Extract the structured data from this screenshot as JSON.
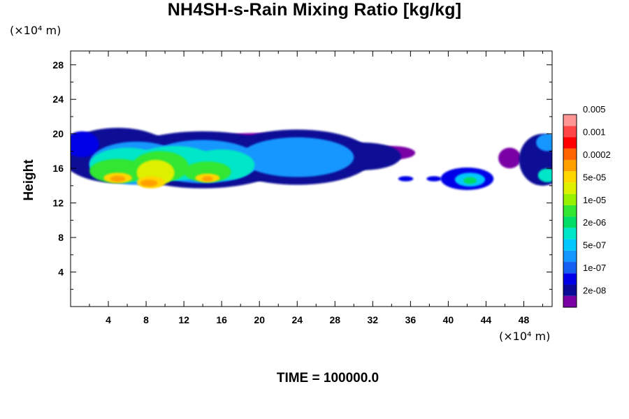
{
  "chart_data": {
    "type": "heatmap",
    "title": "NH4SH-s-Rain Mixing Ratio [kg/kg]",
    "ylabel": "Height",
    "x_unit": "(×10⁴ m)",
    "y_unit": "(×10⁴ m)",
    "footer": "TIME = 100000.0",
    "xlim": [
      0,
      51
    ],
    "ylim": [
      0,
      29.6
    ],
    "x_ticks": [
      4,
      8,
      12,
      16,
      20,
      24,
      28,
      32,
      36,
      40,
      44,
      48
    ],
    "y_ticks": [
      4,
      8,
      12,
      16,
      20,
      24,
      28
    ],
    "x_tick_labels": [
      "4",
      "8",
      "12",
      "16",
      "20",
      "24",
      "28",
      "32",
      "36",
      "40",
      "44",
      "48"
    ],
    "y_tick_labels": [
      "4",
      "8",
      "12",
      "16",
      "20",
      "24",
      "28"
    ],
    "colorbar": {
      "colors": [
        "#7a00a6",
        "#0a0a96",
        "#0000e6",
        "#1460f0",
        "#1496ff",
        "#00c8ff",
        "#00e6c8",
        "#00dc64",
        "#32e632",
        "#96f000",
        "#dcf000",
        "#ffd700",
        "#ffa000",
        "#ff6400",
        "#ff0000",
        "#ff4646",
        "#ff9696"
      ],
      "labels": [
        "2e-08",
        "1e-07",
        "5e-07",
        "2e-06",
        "1e-05",
        "5e-05",
        "0.0002",
        "0.001",
        "0.005"
      ]
    },
    "features": [
      {
        "x": 1.2,
        "y": 18.8,
        "rx": 1.8,
        "ry": 1.5,
        "level": 2
      },
      {
        "x": 5,
        "y": 17.5,
        "rx": 6,
        "ry": 3.2,
        "level": 1
      },
      {
        "x": 14,
        "y": 17,
        "rx": 9,
        "ry": 3.3,
        "level": 1
      },
      {
        "x": 24,
        "y": 17.3,
        "rx": 8,
        "ry": 3.2,
        "level": 1
      },
      {
        "x": 31,
        "y": 17.4,
        "rx": 4,
        "ry": 1.6,
        "level": 1
      },
      {
        "x": 34,
        "y": 17.8,
        "rx": 2.5,
        "ry": 0.8,
        "level": 0
      },
      {
        "x": 20,
        "y": 19.2,
        "rx": 6,
        "ry": 0.9,
        "level": 0
      },
      {
        "x": 7,
        "y": 16.6,
        "rx": 5,
        "ry": 2.5,
        "level": 4
      },
      {
        "x": 14,
        "y": 16.8,
        "rx": 6,
        "ry": 2.5,
        "level": 4
      },
      {
        "x": 24,
        "y": 17.3,
        "rx": 6,
        "ry": 2.3,
        "level": 4
      },
      {
        "x": 6,
        "y": 16.4,
        "rx": 4,
        "ry": 2,
        "level": 6
      },
      {
        "x": 11,
        "y": 16.6,
        "rx": 4.5,
        "ry": 2,
        "level": 6
      },
      {
        "x": 16,
        "y": 16.4,
        "rx": 3.5,
        "ry": 1.8,
        "level": 6
      },
      {
        "x": 5,
        "y": 15.7,
        "rx": 3,
        "ry": 1.4,
        "level": 8
      },
      {
        "x": 9.5,
        "y": 16.2,
        "rx": 3,
        "ry": 1.8,
        "level": 8
      },
      {
        "x": 14.5,
        "y": 15.6,
        "rx": 2.5,
        "ry": 1.2,
        "level": 8
      },
      {
        "x": 9,
        "y": 15.5,
        "rx": 2,
        "ry": 1.5,
        "level": 10
      },
      {
        "x": 5,
        "y": 14.9,
        "rx": 1.5,
        "ry": 0.6,
        "level": 11
      },
      {
        "x": 8.5,
        "y": 14.4,
        "rx": 1.5,
        "ry": 0.7,
        "level": 11
      },
      {
        "x": 14.5,
        "y": 14.9,
        "rx": 1.3,
        "ry": 0.5,
        "level": 11
      },
      {
        "x": 5,
        "y": 14.8,
        "rx": 0.8,
        "ry": 0.35,
        "level": 12
      },
      {
        "x": 8.3,
        "y": 14.3,
        "rx": 0.9,
        "ry": 0.4,
        "level": 12
      },
      {
        "x": 14.5,
        "y": 14.8,
        "rx": 0.6,
        "ry": 0.3,
        "level": 12
      },
      {
        "x": 35.5,
        "y": 14.8,
        "rx": 0.8,
        "ry": 0.3,
        "level": 2
      },
      {
        "x": 38.5,
        "y": 14.8,
        "rx": 0.8,
        "ry": 0.3,
        "level": 2
      },
      {
        "x": 42,
        "y": 14.8,
        "rx": 2.8,
        "ry": 1.3,
        "level": 2
      },
      {
        "x": 42.3,
        "y": 14.7,
        "rx": 1.6,
        "ry": 0.8,
        "level": 5
      },
      {
        "x": 42.3,
        "y": 14.6,
        "rx": 0.7,
        "ry": 0.4,
        "level": 7
      },
      {
        "x": 46.5,
        "y": 17.2,
        "rx": 1.2,
        "ry": 1.2,
        "level": 0
      },
      {
        "x": 50,
        "y": 17,
        "rx": 2.5,
        "ry": 3,
        "level": 1
      },
      {
        "x": 50.5,
        "y": 19,
        "rx": 1.2,
        "ry": 1,
        "level": 4
      },
      {
        "x": 50.5,
        "y": 15.2,
        "rx": 1,
        "ry": 0.8,
        "level": 6
      }
    ]
  }
}
